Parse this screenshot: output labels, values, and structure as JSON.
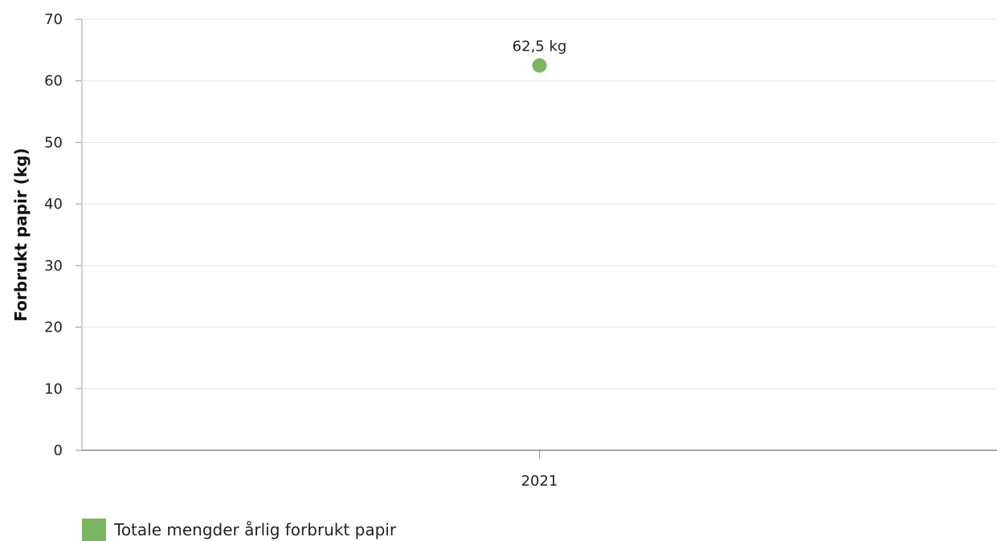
{
  "chart_data": {
    "type": "scatter",
    "categories": [
      "2021"
    ],
    "series": [
      {
        "name": "Totale mengder årlig forbrukt papir",
        "values": [
          62.5
        ],
        "labels": [
          "62,5 kg"
        ],
        "color": "#7db663"
      }
    ],
    "ylabel": "Forbrukt papir (kg)",
    "ylim": [
      0,
      70
    ],
    "yticks": [
      "0",
      "10",
      "20",
      "30",
      "40",
      "50",
      "60",
      "70"
    ],
    "grid": true,
    "legend_position": "bottom-left"
  }
}
